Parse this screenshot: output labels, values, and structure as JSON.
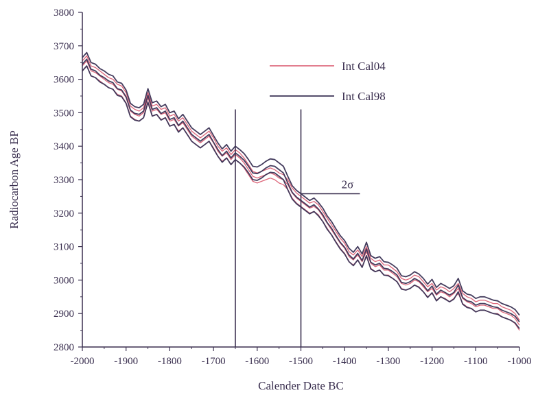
{
  "chart_data": {
    "type": "line",
    "title": "",
    "xlabel": "Calender Date BC",
    "ylabel": "Radiocarbon Age BP",
    "xlim": [
      -2000,
      -1000
    ],
    "ylim": [
      2800,
      3800
    ],
    "x_ticks": [
      -2000,
      -1900,
      -1800,
      -1700,
      -1600,
      -1500,
      -1400,
      -1300,
      -1200,
      -1100,
      -1000
    ],
    "x_tick_labels": [
      "-2000",
      "-1900",
      "-1800",
      "-1700",
      "-1600",
      "-1500",
      "-1400",
      "-1300",
      "-1200",
      "-1100",
      "-1000"
    ],
    "y_ticks": [
      2800,
      2900,
      3000,
      3100,
      3200,
      3300,
      3400,
      3500,
      3600,
      3700,
      3800
    ],
    "y_tick_labels": [
      "2800",
      "2900",
      "3000",
      "3100",
      "3200",
      "3300",
      "3400",
      "3500",
      "3600",
      "3700",
      "3800"
    ],
    "grid": false,
    "legend_position": "top-right",
    "series": [
      {
        "name": "Int Cal04",
        "color": "#d9546a",
        "x": [
          -2000,
          -1990,
          -1980,
          -1970,
          -1960,
          -1950,
          -1940,
          -1930,
          -1920,
          -1910,
          -1900,
          -1890,
          -1880,
          -1870,
          -1860,
          -1850,
          -1840,
          -1830,
          -1820,
          -1810,
          -1800,
          -1790,
          -1780,
          -1770,
          -1760,
          -1750,
          -1740,
          -1730,
          -1720,
          -1710,
          -1700,
          -1690,
          -1680,
          -1670,
          -1660,
          -1650,
          -1640,
          -1630,
          -1620,
          -1610,
          -1600,
          -1590,
          -1580,
          -1570,
          -1560,
          -1550,
          -1540,
          -1530,
          -1520,
          -1510,
          -1500,
          -1490,
          -1480,
          -1470,
          -1460,
          -1450,
          -1440,
          -1430,
          -1420,
          -1410,
          -1400,
          -1390,
          -1380,
          -1370,
          -1360,
          -1350,
          -1340,
          -1330,
          -1320,
          -1310,
          -1300,
          -1290,
          -1280,
          -1270,
          -1260,
          -1250,
          -1240,
          -1230,
          -1220,
          -1210,
          -1200,
          -1190,
          -1180,
          -1170,
          -1160,
          -1150,
          -1140,
          -1130,
          -1120,
          -1110,
          -1100,
          -1090,
          -1080,
          -1070,
          -1060,
          -1050,
          -1040,
          -1030,
          -1020,
          -1010,
          -1000
        ],
        "center": [
          3640,
          3655,
          3625,
          3620,
          3610,
          3600,
          3590,
          3585,
          3570,
          3565,
          3545,
          3505,
          3495,
          3490,
          3500,
          3545,
          3505,
          3510,
          3495,
          3500,
          3475,
          3480,
          3460,
          3470,
          3450,
          3430,
          3420,
          3410,
          3420,
          3430,
          3410,
          3385,
          3370,
          3380,
          3360,
          3375,
          3365,
          3350,
          3330,
          3310,
          3305,
          3310,
          3315,
          3320,
          3315,
          3305,
          3300,
          3285,
          3260,
          3245,
          3235,
          3225,
          3215,
          3220,
          3210,
          3190,
          3170,
          3150,
          3130,
          3110,
          3095,
          3070,
          3060,
          3075,
          3055,
          3085,
          3050,
          3040,
          3045,
          3030,
          3030,
          3020,
          3010,
          2990,
          2985,
          2990,
          3000,
          2995,
          2980,
          2965,
          2975,
          2955,
          2965,
          2960,
          2950,
          2960,
          2975,
          2945,
          2935,
          2930,
          2920,
          2925,
          2925,
          2920,
          2915,
          2915,
          2905,
          2900,
          2895,
          2885,
          2865
        ],
        "half_width": 15
      },
      {
        "name": "Int Cal98",
        "color": "#3b3355",
        "x": [
          -2000,
          -1990,
          -1980,
          -1970,
          -1960,
          -1950,
          -1940,
          -1930,
          -1920,
          -1910,
          -1900,
          -1890,
          -1880,
          -1870,
          -1860,
          -1850,
          -1840,
          -1830,
          -1820,
          -1810,
          -1800,
          -1790,
          -1780,
          -1770,
          -1760,
          -1750,
          -1740,
          -1730,
          -1720,
          -1710,
          -1700,
          -1690,
          -1680,
          -1670,
          -1660,
          -1650,
          -1640,
          -1630,
          -1620,
          -1610,
          -1600,
          -1590,
          -1580,
          -1570,
          -1560,
          -1550,
          -1540,
          -1530,
          -1520,
          -1510,
          -1500,
          -1490,
          -1480,
          -1470,
          -1460,
          -1450,
          -1440,
          -1430,
          -1420,
          -1410,
          -1400,
          -1390,
          -1380,
          -1370,
          -1360,
          -1350,
          -1340,
          -1330,
          -1320,
          -1310,
          -1300,
          -1290,
          -1280,
          -1270,
          -1260,
          -1250,
          -1240,
          -1230,
          -1220,
          -1210,
          -1200,
          -1190,
          -1180,
          -1170,
          -1160,
          -1150,
          -1140,
          -1130,
          -1120,
          -1110,
          -1100,
          -1090,
          -1080,
          -1070,
          -1060,
          -1050,
          -1040,
          -1030,
          -1020,
          -1010,
          -1000
        ],
        "center": [
          3645,
          3660,
          3630,
          3625,
          3612,
          3605,
          3595,
          3590,
          3572,
          3568,
          3548,
          3508,
          3498,
          3495,
          3505,
          3552,
          3510,
          3515,
          3498,
          3505,
          3480,
          3485,
          3462,
          3475,
          3455,
          3435,
          3425,
          3415,
          3425,
          3435,
          3412,
          3390,
          3372,
          3385,
          3365,
          3380,
          3370,
          3358,
          3340,
          3320,
          3318,
          3325,
          3335,
          3342,
          3340,
          3330,
          3320,
          3290,
          3262,
          3248,
          3238,
          3228,
          3218,
          3225,
          3212,
          3195,
          3172,
          3155,
          3133,
          3113,
          3098,
          3075,
          3063,
          3080,
          3058,
          3093,
          3053,
          3045,
          3050,
          3035,
          3033,
          3025,
          3015,
          2993,
          2990,
          2995,
          3005,
          2998,
          2985,
          2968,
          2982,
          2958,
          2970,
          2963,
          2955,
          2963,
          2985,
          2948,
          2938,
          2935,
          2925,
          2930,
          2930,
          2925,
          2920,
          2918,
          2910,
          2905,
          2900,
          2892,
          2875
        ],
        "half_width": 20
      }
    ],
    "annotations": {
      "vertical_lines_x": [
        -1650,
        -1500
      ],
      "vertical_lines_top": 3510,
      "sigma_label": "2σ",
      "sigma_line": {
        "x_start": -1500,
        "x_end": -1365,
        "y": 3258
      }
    }
  }
}
